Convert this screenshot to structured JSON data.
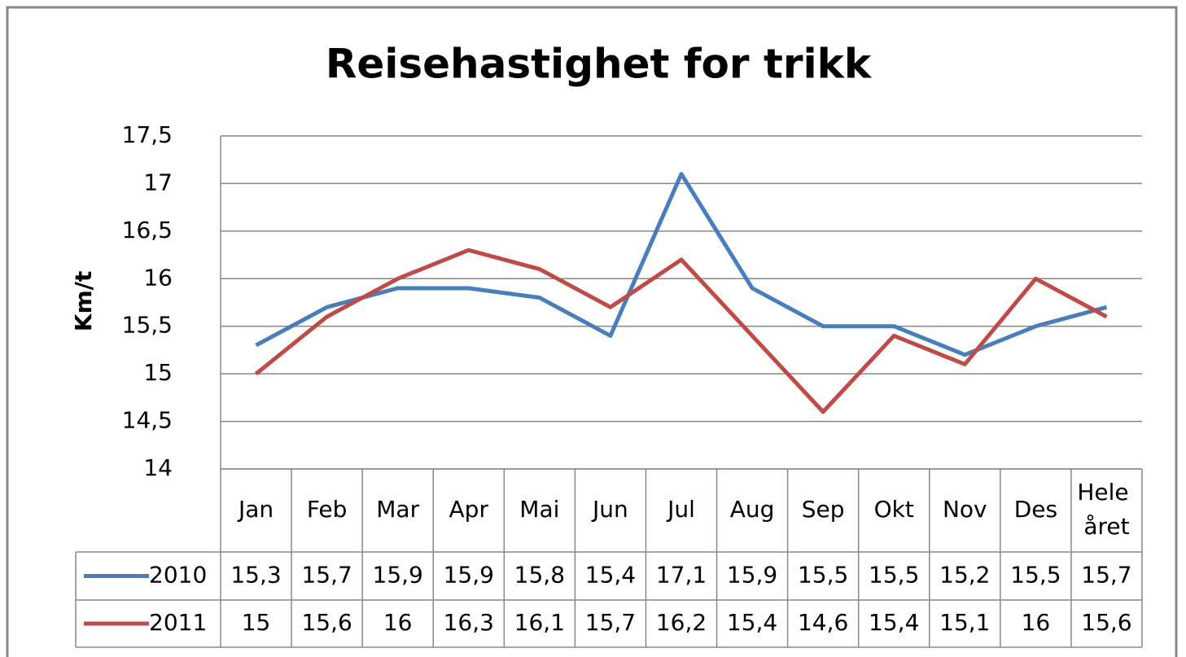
{
  "chart_data": {
    "type": "line",
    "title": "Reisehastighet for trikk",
    "y_label": "Km/t",
    "categories": [
      "Jan",
      "Feb",
      "Mar",
      "Apr",
      "Mai",
      "Jun",
      "Jul",
      "Aug",
      "Sep",
      "Okt",
      "Nov",
      "Des",
      "Hele året"
    ],
    "series": [
      {
        "name": "2010",
        "color": "#4a7ebb",
        "values": [
          15.3,
          15.7,
          15.9,
          15.9,
          15.8,
          15.4,
          17.1,
          15.9,
          15.5,
          15.5,
          15.2,
          15.5,
          15.7
        ],
        "value_labels": [
          "15,3",
          "15,7",
          "15,9",
          "15,9",
          "15,8",
          "15,4",
          "17,1",
          "15,9",
          "15,5",
          "15,5",
          "15,2",
          "15,5",
          "15,7"
        ]
      },
      {
        "name": "2011",
        "color": "#be4b48",
        "values": [
          15,
          15.6,
          16,
          16.3,
          16.1,
          15.7,
          16.2,
          15.4,
          14.6,
          15.4,
          15.1,
          16,
          15.6
        ],
        "value_labels": [
          "15",
          "15,6",
          "16",
          "16,3",
          "16,1",
          "15,7",
          "16,2",
          "15,4",
          "14,6",
          "15,4",
          "15,1",
          "16",
          "15,6"
        ]
      }
    ],
    "ylim": [
      14,
      17.5
    ],
    "yticks": [
      14,
      {
        "value": 14.5,
        "label": "14,5"
      },
      15,
      {
        "value": 15.5,
        "label": "15,5"
      },
      16,
      {
        "value": 16.5,
        "label": "16,5"
      },
      17,
      {
        "value": 17.5,
        "label": "17,5"
      }
    ],
    "grid": true,
    "data_table": true
  }
}
